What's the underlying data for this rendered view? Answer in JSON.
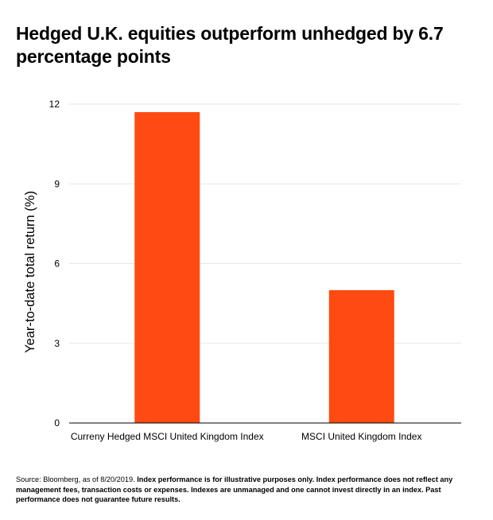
{
  "chart_data": {
    "type": "bar",
    "title": "Hedged U.K. equities outperform unhedged by 6.7 percentage points",
    "xlabel": "",
    "ylabel": "Year-to-date total return (%)",
    "categories": [
      "Curreny Hedged MSCI United Kingdom Index",
      "MSCI United Kingdom Index"
    ],
    "values": [
      11.7,
      5.0
    ],
    "ylim": [
      0,
      12
    ],
    "yticks": [
      0,
      3,
      6,
      9,
      12
    ],
    "grid": true,
    "legend": "none",
    "bar_color": "#ff4a12",
    "grid_color": "#e6e6e6"
  },
  "footnote": {
    "source": "Source: Bloomberg, as of 8/20/2019.",
    "disclaimer": "Index performance is for illustrative purposes only.  Index performance does not reflect any management fees, transaction costs or expenses. Indexes are unmanaged and one cannot invest directly in an index. Past performance does not guarantee future results."
  }
}
